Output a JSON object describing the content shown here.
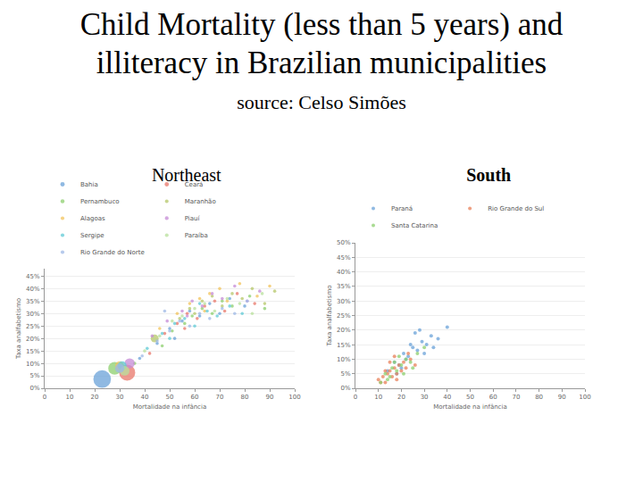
{
  "header": {
    "title": "Child Mortality (less than 5 years) and\nilliteracy in Brazilian municipalities",
    "source": "source: Celso Simões"
  },
  "chart_data": [
    {
      "type": "scatter",
      "title": "Northeast",
      "xlabel": "Mortalidade na infância",
      "ylabel": "Taxa analfabetismo",
      "xlim": [
        0,
        100
      ],
      "xticks": [
        0,
        10,
        20,
        30,
        40,
        50,
        60,
        70,
        80,
        90,
        100
      ],
      "ylim": [
        0,
        48
      ],
      "yticks": [
        {
          "value": 0,
          "label": "0%"
        },
        {
          "value": 5,
          "label": "5%"
        },
        {
          "value": 10,
          "label": "10%"
        },
        {
          "value": 15,
          "label": "15%"
        },
        {
          "value": 20,
          "label": "20%"
        },
        {
          "value": 25,
          "label": "25%"
        },
        {
          "value": 30,
          "label": "30%"
        },
        {
          "value": 35,
          "label": "35%"
        },
        {
          "value": 40,
          "label": "40%"
        },
        {
          "value": 45,
          "label": "45%"
        }
      ],
      "grid": true,
      "legend": "top",
      "marker": "circle",
      "series": [
        {
          "name": "Bahia",
          "color": "#6aa1d8",
          "x": [
            23,
            38,
            45,
            50,
            55,
            58,
            62,
            66,
            70,
            74,
            80,
            52
          ],
          "values": [
            3.7,
            12,
            18,
            24,
            27,
            31,
            29,
            34,
            30,
            36,
            33,
            20
          ],
          "size": [
            30,
            1,
            1,
            1,
            1,
            1,
            1,
            1,
            1,
            1,
            1,
            1
          ]
        },
        {
          "name": "Ceará",
          "color": "#e8776a",
          "x": [
            33,
            42,
            48,
            53,
            57,
            61,
            64,
            68,
            72,
            77,
            84,
            56
          ],
          "values": [
            6.3,
            14,
            22,
            26,
            30,
            28,
            33,
            35,
            31,
            38,
            34,
            24
          ],
          "size": [
            25,
            1,
            1,
            1,
            1,
            1,
            1,
            1,
            1,
            1,
            1,
            1
          ]
        },
        {
          "name": "Pernambuco",
          "color": "#8ccf6e",
          "x": [
            28,
            36,
            47,
            51,
            56,
            59,
            63,
            67,
            71,
            75,
            82,
            88
          ],
          "values": [
            8,
            10,
            17,
            23,
            26,
            29,
            32,
            30,
            35,
            33,
            37,
            32
          ],
          "size": [
            16,
            1,
            1,
            1,
            1,
            1,
            1,
            1,
            1,
            1,
            1,
            1
          ]
        },
        {
          "name": "Maranhão",
          "color": "#b5c76a",
          "x": [
            44,
            54,
            58,
            63,
            67,
            71,
            75,
            79,
            83,
            88,
            92,
            60
          ],
          "values": [
            20,
            28,
            32,
            35,
            37,
            33,
            38,
            36,
            40,
            34,
            39,
            30
          ],
          "size": [
            6,
            1,
            1,
            1,
            1,
            1,
            1,
            1,
            1,
            1,
            1,
            1
          ]
        },
        {
          "name": "Alagoas",
          "color": "#f2c35b",
          "x": [
            30,
            46,
            53,
            58,
            62,
            66,
            70,
            73,
            78,
            85,
            90,
            64
          ],
          "values": [
            9,
            24,
            30,
            34,
            36,
            38,
            40,
            35,
            42,
            37,
            41,
            31
          ],
          "size": [
            8,
            1,
            1,
            1,
            1,
            1,
            1,
            1,
            1,
            1,
            1,
            1
          ]
        },
        {
          "name": "Piauí",
          "color": "#c58bd6",
          "x": [
            34,
            43,
            49,
            55,
            59,
            63,
            67,
            71,
            76,
            81,
            86,
            57
          ],
          "values": [
            10,
            21,
            27,
            31,
            35,
            33,
            38,
            36,
            41,
            35,
            39,
            29
          ],
          "size": [
            10,
            1,
            1,
            1,
            1,
            1,
            1,
            1,
            1,
            1,
            1,
            1
          ]
        },
        {
          "name": "Sergipe",
          "color": "#5fc9d6",
          "x": [
            31,
            41,
            47,
            52,
            56,
            60,
            65,
            69,
            74,
            79,
            50,
            62
          ],
          "values": [
            9,
            16,
            22,
            26,
            28,
            25,
            31,
            29,
            33,
            30,
            20,
            34
          ],
          "size": [
            8,
            1,
            1,
            1,
            1,
            1,
            1,
            1,
            1,
            1,
            1,
            1
          ]
        },
        {
          "name": "Paraíba",
          "color": "#b8e09c",
          "x": [
            32,
            40,
            46,
            51,
            55,
            60,
            64,
            68,
            73,
            78,
            83,
            87
          ],
          "values": [
            7,
            15,
            21,
            27,
            29,
            32,
            34,
            31,
            36,
            34,
            30,
            38
          ],
          "size": [
            9,
            1,
            1,
            1,
            1,
            1,
            1,
            1,
            1,
            1,
            1,
            1
          ]
        },
        {
          "name": "Rio Grande do Norte",
          "color": "#9db8e6",
          "x": [
            30,
            39,
            45,
            50,
            54,
            58,
            62,
            66,
            71,
            76,
            81,
            48
          ],
          "values": [
            8,
            13,
            19,
            23,
            27,
            25,
            30,
            28,
            32,
            30,
            35,
            31
          ],
          "size": [
            8,
            1,
            1,
            1,
            1,
            1,
            1,
            1,
            1,
            1,
            1,
            1
          ]
        }
      ]
    },
    {
      "type": "scatter",
      "title": "South",
      "xlabel": "Mortalidade na infância",
      "ylabel": "Taxa analfabetismo",
      "xlim": [
        0,
        100
      ],
      "xticks": [
        0,
        10,
        20,
        30,
        40,
        50,
        60,
        70,
        80,
        90,
        100
      ],
      "ylim": [
        0,
        50
      ],
      "yticks": [
        {
          "value": 0,
          "label": "0%"
        },
        {
          "value": 5,
          "label": "5%"
        },
        {
          "value": 10,
          "label": "10%"
        },
        {
          "value": 15,
          "label": "15%"
        },
        {
          "value": 20,
          "label": "20%"
        },
        {
          "value": 25,
          "label": "25%"
        },
        {
          "value": 30,
          "label": "30%"
        },
        {
          "value": 35,
          "label": "35%"
        },
        {
          "value": 40,
          "label": "40%"
        },
        {
          "value": 45,
          "label": "45%"
        },
        {
          "value": 50,
          "label": "50%"
        }
      ],
      "grid": true,
      "legend": "top",
      "marker": "circle",
      "series": [
        {
          "name": "Paraná",
          "color": "#6aa1d8",
          "x": [
            14,
            17,
            19,
            21,
            23,
            25,
            27,
            29,
            31,
            33,
            36,
            40,
            22,
            26,
            30,
            18,
            24,
            28,
            34,
            20
          ],
          "values": [
            6,
            9,
            8,
            12,
            11,
            14,
            13,
            16,
            15,
            18,
            17,
            21,
            10,
            19,
            12,
            5,
            15,
            20,
            14,
            7
          ]
        },
        {
          "name": "Rio Grande do Sul",
          "color": "#e8805a",
          "x": [
            10,
            12,
            13,
            14,
            15,
            16,
            17,
            18,
            19,
            20,
            21,
            22,
            24,
            26,
            11,
            15,
            18,
            23,
            13,
            17
          ],
          "values": [
            3,
            4,
            2,
            5,
            6,
            4,
            7,
            5,
            8,
            6,
            9,
            7,
            10,
            8,
            2,
            9,
            3,
            12,
            6,
            11
          ]
        },
        {
          "name": "Santa Catarina",
          "color": "#8ccf6e",
          "x": [
            11,
            13,
            15,
            16,
            18,
            20,
            22,
            24,
            27,
            30,
            14,
            19,
            25,
            17,
            21
          ],
          "values": [
            2,
            5,
            4,
            7,
            6,
            8,
            10,
            9,
            12,
            14,
            3,
            11,
            7,
            9,
            5
          ]
        }
      ]
    }
  ]
}
